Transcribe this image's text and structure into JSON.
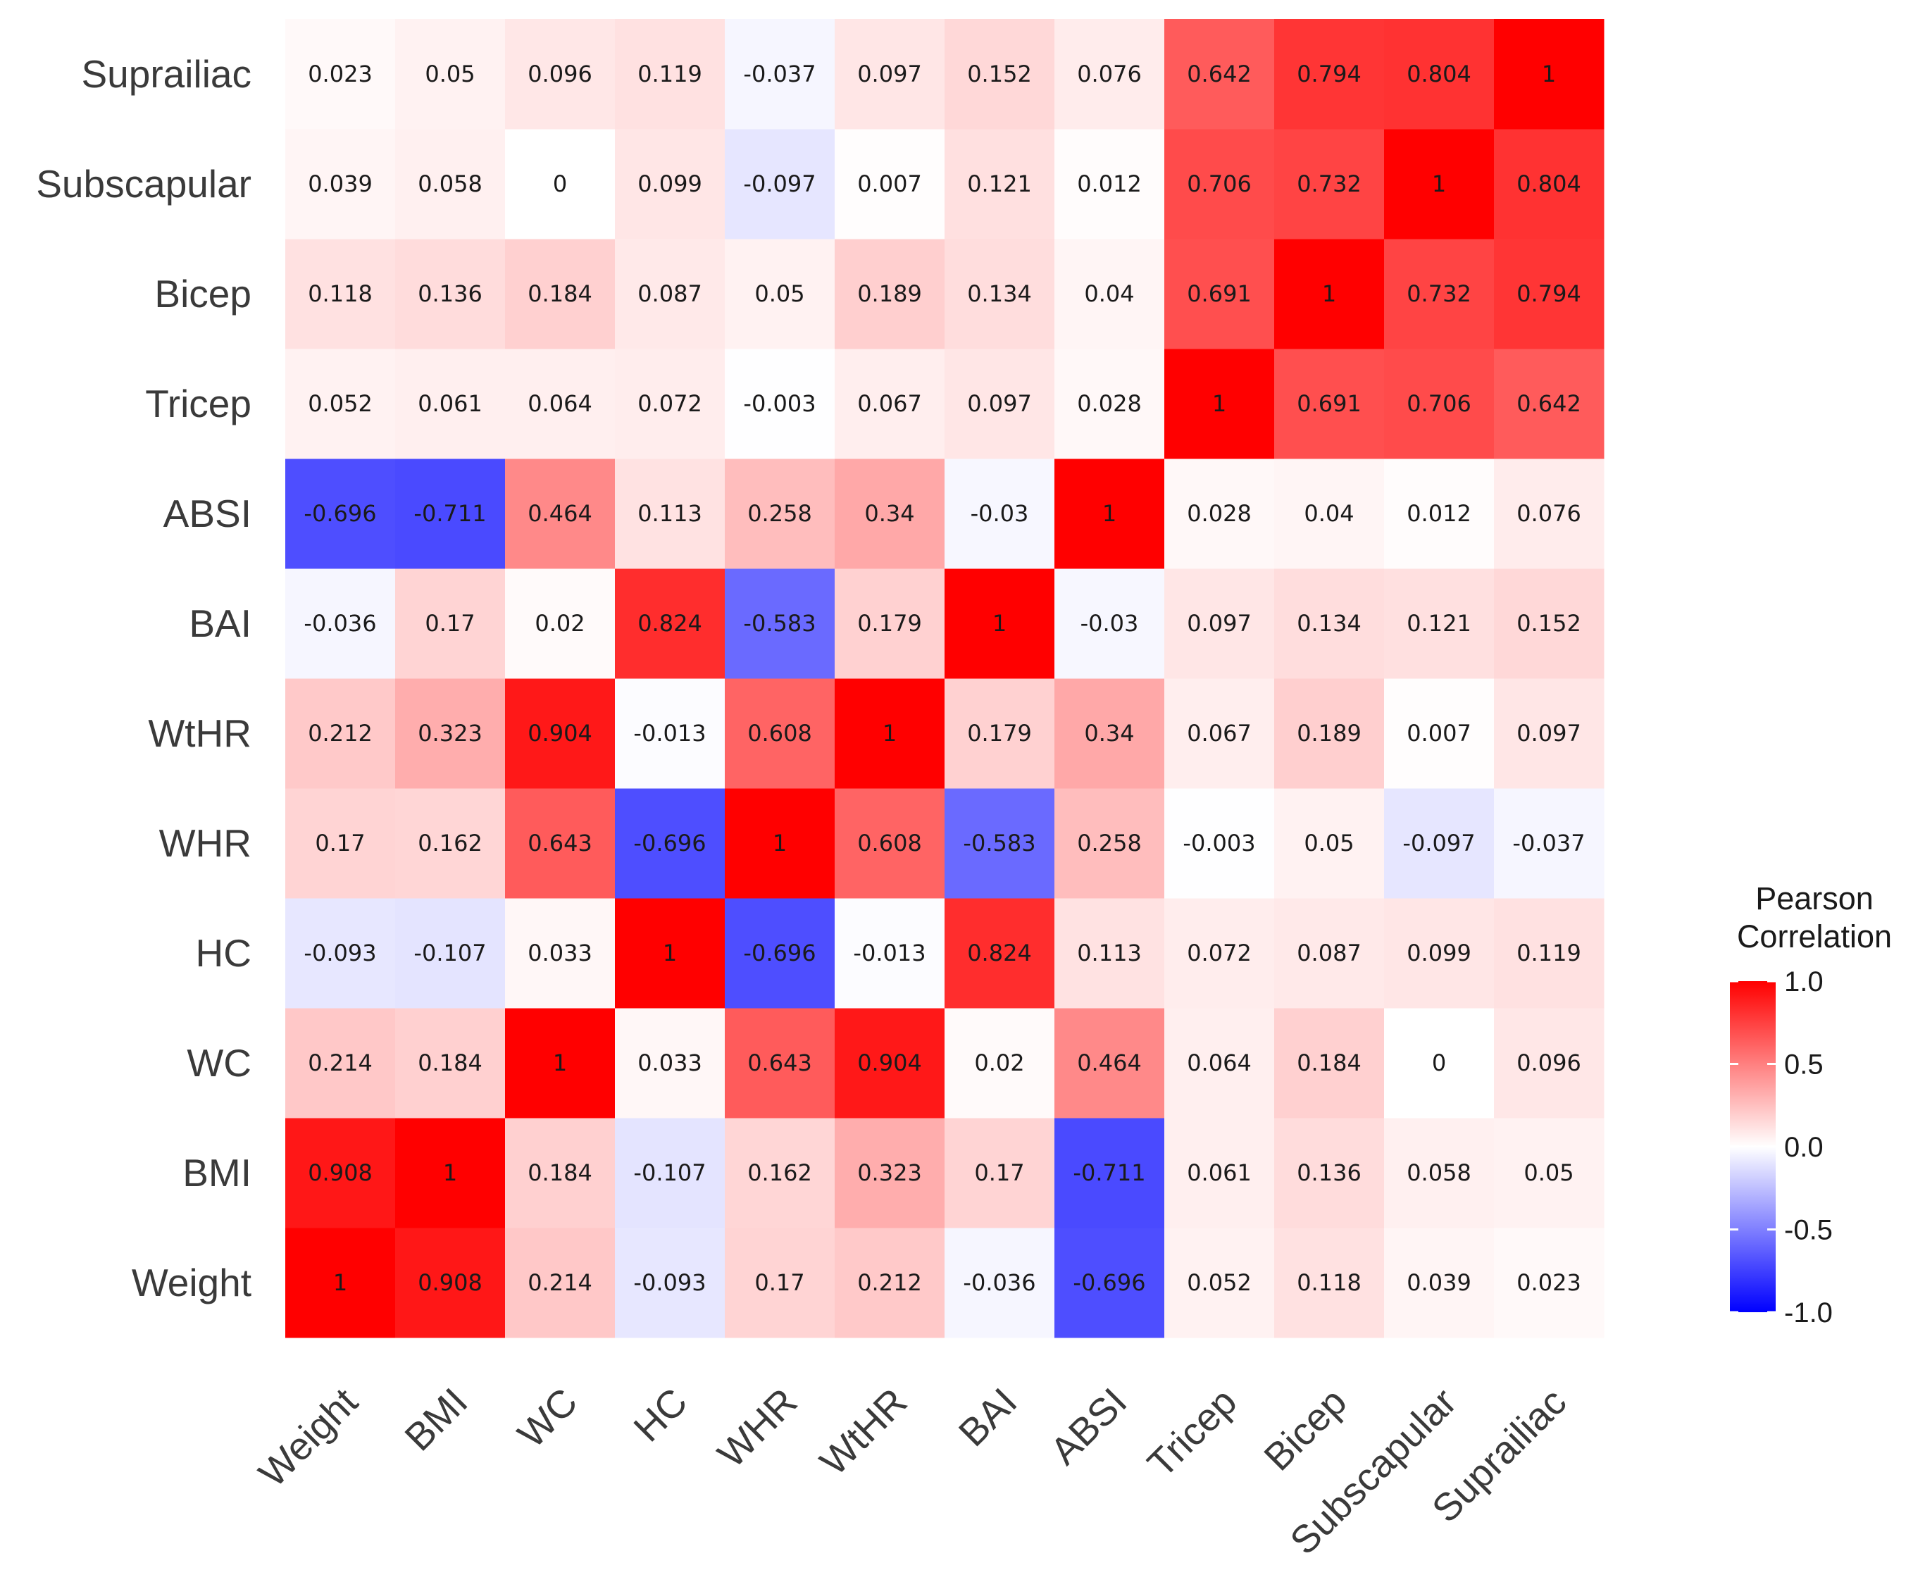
{
  "chart_data": {
    "type": "heatmap",
    "title": "",
    "xlabel": "",
    "ylabel": "",
    "variables": [
      "Weight",
      "BMI",
      "WC",
      "HC",
      "WHR",
      "WtHR",
      "BAI",
      "ABSI",
      "Tricep",
      "Bicep",
      "Subscapular",
      "Suprailiac"
    ],
    "matrix": [
      [
        "1",
        "0.908",
        "0.214",
        "-0.093",
        "0.17",
        "0.212",
        "-0.036",
        "-0.696",
        "0.052",
        "0.118",
        "0.039",
        "0.023"
      ],
      [
        "0.908",
        "1",
        "0.184",
        "-0.107",
        "0.162",
        "0.323",
        "0.17",
        "-0.711",
        "0.061",
        "0.136",
        "0.058",
        "0.05"
      ],
      [
        "0.214",
        "0.184",
        "1",
        "0.033",
        "0.643",
        "0.904",
        "0.02",
        "0.464",
        "0.064",
        "0.184",
        "0",
        "0.096"
      ],
      [
        "-0.093",
        "-0.107",
        "0.033",
        "1",
        "-0.696",
        "-0.013",
        "0.824",
        "0.113",
        "0.072",
        "0.087",
        "0.099",
        "0.119"
      ],
      [
        "0.17",
        "0.162",
        "0.643",
        "-0.696",
        "1",
        "0.608",
        "-0.583",
        "0.258",
        "-0.003",
        "0.05",
        "-0.097",
        "-0.037"
      ],
      [
        "0.212",
        "0.323",
        "0.904",
        "-0.013",
        "0.608",
        "1",
        "0.179",
        "0.34",
        "0.067",
        "0.189",
        "0.007",
        "0.097"
      ],
      [
        "-0.036",
        "0.17",
        "0.02",
        "0.824",
        "-0.583",
        "0.179",
        "1",
        "-0.03",
        "0.097",
        "0.134",
        "0.121",
        "0.152"
      ],
      [
        "-0.696",
        "-0.711",
        "0.464",
        "0.113",
        "0.258",
        "0.34",
        "-0.03",
        "1",
        "0.028",
        "0.04",
        "0.012",
        "0.076"
      ],
      [
        "0.052",
        "0.061",
        "0.064",
        "0.072",
        "-0.003",
        "0.067",
        "0.097",
        "0.028",
        "1",
        "0.691",
        "0.706",
        "0.642"
      ],
      [
        "0.118",
        "0.136",
        "0.184",
        "0.087",
        "0.05",
        "0.189",
        "0.134",
        "0.04",
        "0.691",
        "1",
        "0.732",
        "0.794"
      ],
      [
        "0.039",
        "0.058",
        "0",
        "0.099",
        "-0.097",
        "0.007",
        "0.121",
        "0.012",
        "0.706",
        "0.732",
        "1",
        "0.804"
      ],
      [
        "0.023",
        "0.05",
        "0.096",
        "0.119",
        "-0.037",
        "0.097",
        "0.152",
        "0.076",
        "0.642",
        "0.794",
        "0.804",
        "1"
      ]
    ],
    "color_scale": {
      "low": "#0000ff",
      "mid": "#ffffff",
      "high": "#ff0000",
      "range": [
        -1,
        1
      ]
    },
    "legend": {
      "title_lines": [
        "Pearson",
        "Correlation"
      ],
      "ticks": [
        1,
        0.5,
        0,
        -0.5,
        -1
      ],
      "tick_labels": [
        "1.0",
        "0.5",
        "0.0",
        "-0.5",
        "-1.0"
      ],
      "placement": "right"
    }
  }
}
